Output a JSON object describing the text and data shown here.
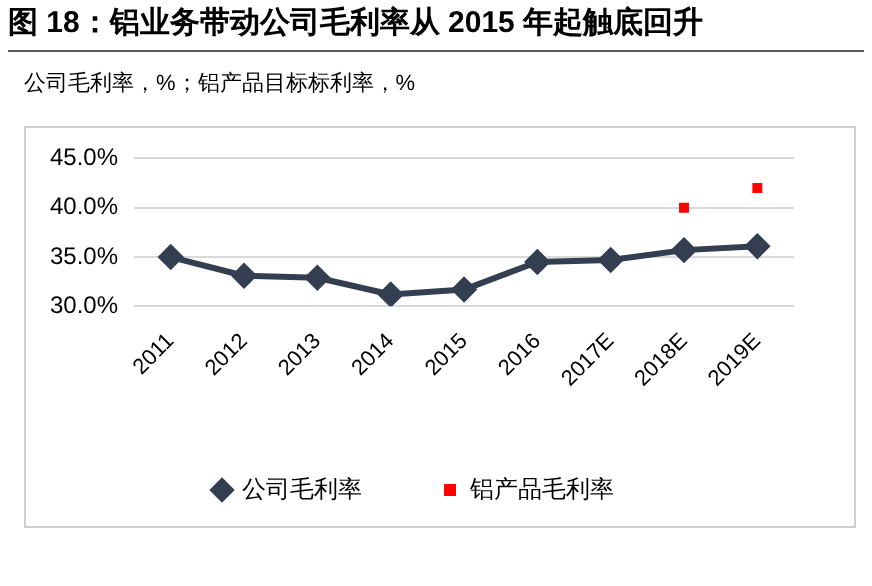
{
  "chart_data": {
    "type": "line",
    "title": "图 18：铝业务带动公司毛利率从 2015 年起触底回升",
    "subtitle": "公司毛利率，%；铝产品目标标利率，%",
    "categories": [
      "2011",
      "2012",
      "2013",
      "2014",
      "2015",
      "2016",
      "2017E",
      "2018E",
      "2019E"
    ],
    "series": [
      {
        "name": "公司毛利率",
        "color": "#333f50",
        "marker": "diamond",
        "values": [
          35.0,
          33.1,
          32.9,
          31.2,
          31.7,
          34.5,
          34.7,
          35.7,
          36.1
        ]
      },
      {
        "name": "铝产品毛利率",
        "type": "scatter",
        "color": "#ff0000",
        "marker": "square",
        "values": [
          null,
          null,
          null,
          null,
          null,
          null,
          null,
          40.0,
          42.0
        ]
      }
    ],
    "ylim": [
      30,
      45
    ],
    "yticks": [
      {
        "value": 30,
        "label": "30.0%"
      },
      {
        "value": 35,
        "label": "35.0%"
      },
      {
        "value": 40,
        "label": "40.0%"
      },
      {
        "value": 45,
        "label": "45.0%"
      }
    ],
    "grid": "y",
    "legend": "bottom"
  }
}
